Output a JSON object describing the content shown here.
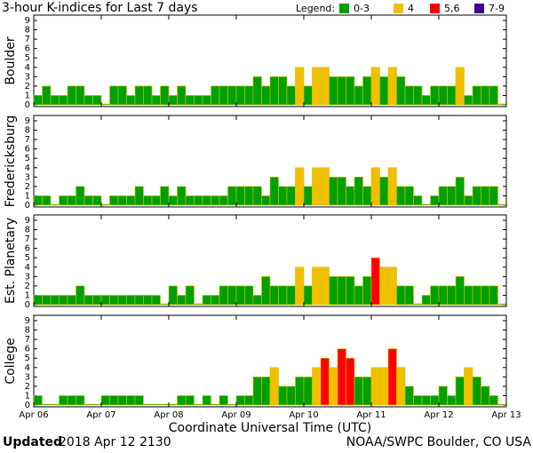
{
  "header": {
    "title": "3-hour K-indices for Last 7 days",
    "legend_title": "Legend:",
    "legend": [
      {
        "label": "0-3",
        "color": "#00a000"
      },
      {
        "label": "4",
        "color": "#f0c000"
      },
      {
        "label": "5,6",
        "color": "#ff0000"
      },
      {
        "label": "7-9",
        "color": "#400090"
      }
    ]
  },
  "chart_data": [
    {
      "type": "bar",
      "title": "Boulder",
      "ylim": [
        0,
        9
      ],
      "yticks": [
        0,
        1,
        2,
        3,
        4,
        5,
        6,
        7,
        8,
        9
      ],
      "values": [
        1,
        2,
        1,
        1,
        2,
        2,
        1,
        1,
        0,
        2,
        2,
        1,
        2,
        2,
        1,
        2,
        1,
        2,
        1,
        1,
        1,
        2,
        2,
        2,
        2,
        2,
        3,
        2,
        3,
        3,
        2,
        4,
        2,
        4,
        4,
        3,
        3,
        3,
        2,
        3,
        4,
        3,
        4,
        3,
        2,
        2,
        1,
        2,
        2,
        2,
        4,
        1,
        2,
        2,
        2,
        0
      ]
    },
    {
      "type": "bar",
      "title": "Fredericksburg",
      "ylim": [
        0,
        9
      ],
      "yticks": [
        0,
        1,
        2,
        3,
        4,
        5,
        6,
        7,
        8,
        9
      ],
      "values": [
        1,
        1,
        0,
        1,
        1,
        2,
        1,
        1,
        0,
        1,
        1,
        1,
        2,
        1,
        1,
        2,
        1,
        2,
        1,
        1,
        1,
        1,
        1,
        2,
        2,
        2,
        2,
        1,
        3,
        2,
        2,
        4,
        2,
        4,
        4,
        3,
        3,
        2,
        3,
        2,
        4,
        3,
        4,
        2,
        2,
        1,
        0,
        1,
        2,
        2,
        3,
        1,
        2,
        2,
        2,
        0
      ]
    },
    {
      "type": "bar",
      "title": "Est. Planetary",
      "ylim": [
        0,
        9
      ],
      "yticks": [
        0,
        1,
        2,
        3,
        4,
        5,
        6,
        7,
        8,
        9
      ],
      "values": [
        1,
        1,
        1,
        1,
        1,
        2,
        1,
        1,
        1,
        1,
        1,
        1,
        1,
        1,
        1,
        0,
        2,
        1,
        2,
        0,
        1,
        1,
        2,
        2,
        2,
        2,
        1,
        3,
        2,
        2,
        2,
        4,
        2,
        4,
        4,
        3,
        3,
        3,
        2,
        3,
        5,
        4,
        4,
        2,
        2,
        0,
        1,
        2,
        2,
        2,
        3,
        2,
        2,
        2,
        2,
        0
      ]
    },
    {
      "type": "bar",
      "title": "College",
      "ylim": [
        0,
        9
      ],
      "yticks": [
        0,
        1,
        2,
        3,
        4,
        5,
        6,
        7,
        8,
        9
      ],
      "values": [
        1,
        0,
        0,
        1,
        1,
        1,
        0,
        0,
        1,
        1,
        1,
        1,
        1,
        0,
        0,
        0,
        0,
        1,
        1,
        0,
        1,
        0,
        1,
        0,
        1,
        1,
        3,
        3,
        4,
        2,
        2,
        3,
        3,
        4,
        5,
        4,
        6,
        5,
        3,
        3,
        4,
        4,
        6,
        4,
        2,
        1,
        1,
        1,
        2,
        1,
        3,
        4,
        3,
        2,
        1,
        0
      ],
      "x_tick_labels": [
        "Apr 06",
        "Apr 07",
        "Apr 08",
        "Apr 09",
        "Apr 10",
        "Apr 11",
        "Apr 12",
        "Apr 13"
      ],
      "xlabel": "Coordinate Universal Time (UTC)"
    }
  ],
  "footer": {
    "updated_label": "Updated",
    "updated": "2018 Apr 12 2130",
    "credit": "NOAA/SWPC Boulder, CO USA"
  }
}
